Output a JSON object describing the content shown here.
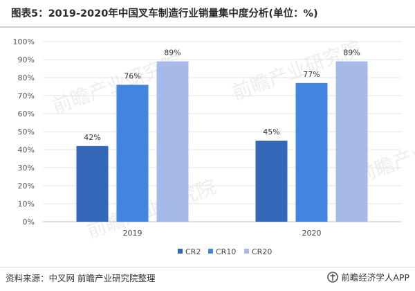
{
  "title": "图表5：2019-2020年中国叉车制造行业销量集中度分析(单位：%)",
  "source": "资料来源：中叉网 前瞻产业研究院整理",
  "brand": {
    "name": "前瞻经济学人APP",
    "logo_icon": "qianzhan-logo-icon"
  },
  "watermark": {
    "text": "前瞻产业研究院"
  },
  "chart_data": {
    "type": "bar",
    "title": "",
    "xlabel": "",
    "ylabel": "",
    "categories": [
      "2019",
      "2020"
    ],
    "series": [
      {
        "name": "CR2",
        "values": [
          42,
          45
        ],
        "color": "#3467b8"
      },
      {
        "name": "CR10",
        "values": [
          76,
          77
        ],
        "color": "#4285de"
      },
      {
        "name": "CR20",
        "values": [
          89,
          89
        ],
        "color": "#a7b9e8"
      }
    ],
    "value_labels": [
      [
        "42%",
        "45%"
      ],
      [
        "76%",
        "77%"
      ],
      [
        "89%",
        "89%"
      ]
    ],
    "ylim": [
      0,
      100
    ],
    "yticks": [
      "0%",
      "10%",
      "20%",
      "30%",
      "40%",
      "50%",
      "60%",
      "70%",
      "80%",
      "90%",
      "100%"
    ],
    "grid": true,
    "legend_position": "bottom-center"
  }
}
